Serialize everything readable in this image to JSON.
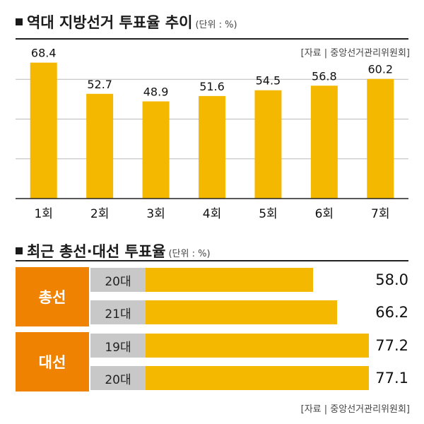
{
  "section1": {
    "title": "역대 지방선거 투표율 추이",
    "unit": "(단위 : %)",
    "source": "[자료 | 중앙선거관리위원회]"
  },
  "section2": {
    "title": "최근 총선·대선 투표율",
    "unit": "(단위 : %)",
    "source": "[자료 | 중앙선거관리위원회]",
    "groups": [
      {
        "label": "총선",
        "rows": [
          {
            "age": "20대",
            "value": "58.0"
          },
          {
            "age": "21대",
            "value": "66.2"
          }
        ]
      },
      {
        "label": "대선",
        "rows": [
          {
            "age": "19대",
            "value": "77.2"
          },
          {
            "age": "20대",
            "value": "77.1"
          }
        ]
      }
    ]
  },
  "colors": {
    "bar": "#f5b800",
    "accent": "#ef8200",
    "age_bg": "#c8c8c8"
  },
  "chart_data": [
    {
      "type": "bar",
      "title": "역대 지방선거 투표율 추이",
      "categories": [
        "1회",
        "2회",
        "3회",
        "4회",
        "5회",
        "6회",
        "7회"
      ],
      "values": [
        68.4,
        52.7,
        48.9,
        51.6,
        54.5,
        56.8,
        60.2
      ],
      "ylim": [
        0,
        80
      ],
      "grid": true
    },
    {
      "type": "bar",
      "orientation": "horizontal",
      "title": "최근 총선·대선 투표율",
      "categories": [
        "총선 20대",
        "총선 21대",
        "대선 19대",
        "대선 20대"
      ],
      "values": [
        58.0,
        66.2,
        77.2,
        77.1
      ]
    }
  ]
}
